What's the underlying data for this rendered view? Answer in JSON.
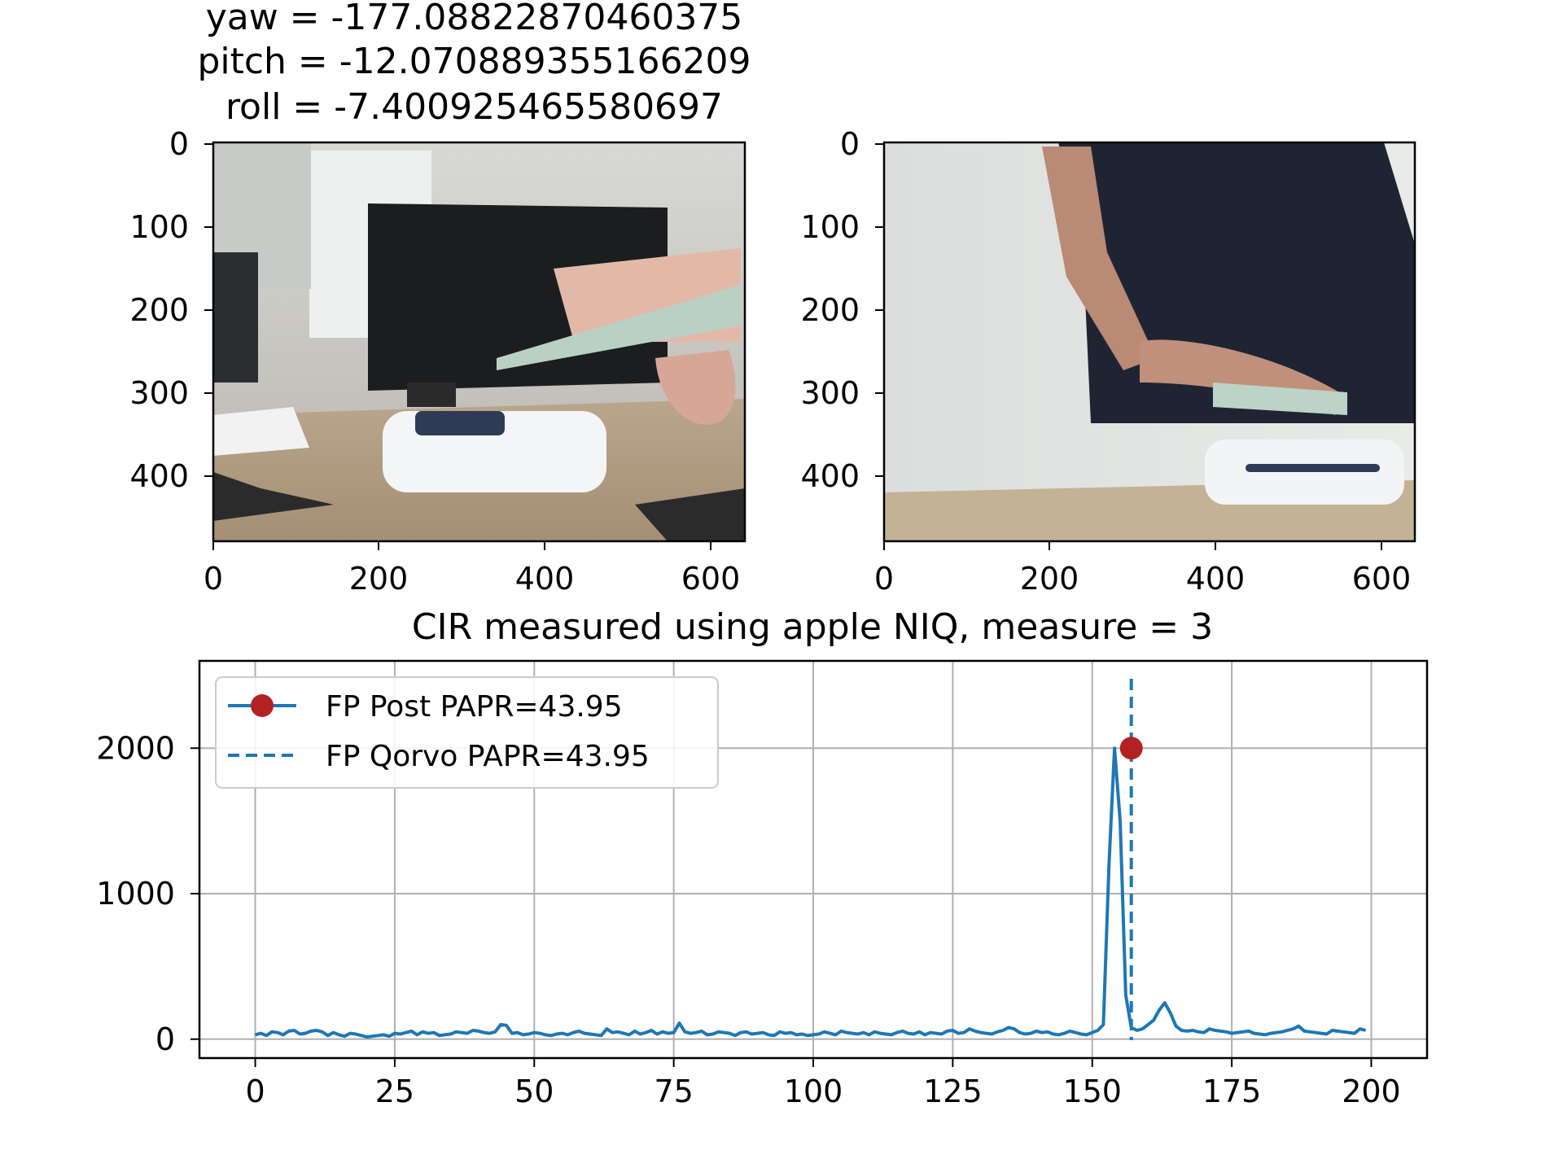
{
  "header": {
    "yaw": "yaw = -177.08822870460375",
    "pitch": "pitch = -12.070889355166209",
    "roll": "roll = -7.400925465580697"
  },
  "images": [
    {
      "name": "camera-view-left",
      "description_icon": "camera-photo",
      "x_ticks": [
        "0",
        "200",
        "400",
        "600"
      ],
      "y_ticks": [
        "0",
        "100",
        "200",
        "300",
        "400"
      ]
    },
    {
      "name": "camera-view-right",
      "description_icon": "camera-photo",
      "x_ticks": [
        "0",
        "200",
        "400",
        "600"
      ],
      "y_ticks": [
        "0",
        "100",
        "200",
        "300",
        "400"
      ]
    }
  ],
  "chart_data": {
    "type": "line",
    "title": "CIR measured using apple NIQ, measure = 3",
    "xlabel": "",
    "ylabel": "",
    "xlim": [
      -10,
      210
    ],
    "ylim": [
      -130,
      2600
    ],
    "x_ticks": [
      0,
      25,
      50,
      75,
      100,
      125,
      150,
      175,
      200
    ],
    "y_ticks": [
      0,
      1000,
      2000
    ],
    "grid": true,
    "legend_position": "top-left",
    "series": [
      {
        "name": "FP Post PAPR=43.95",
        "color": "#1f77b4",
        "marker_color": "#b22222",
        "marker": {
          "x": 157,
          "y": 2000
        },
        "values": [
          30,
          40,
          25,
          50,
          45,
          30,
          55,
          60,
          35,
          40,
          55,
          60,
          50,
          25,
          45,
          30,
          20,
          40,
          35,
          25,
          15,
          20,
          25,
          30,
          20,
          40,
          35,
          45,
          55,
          30,
          50,
          40,
          45,
          25,
          30,
          35,
          50,
          45,
          40,
          60,
          55,
          45,
          40,
          50,
          100,
          95,
          40,
          45,
          30,
          35,
          45,
          40,
          30,
          25,
          35,
          40,
          30,
          45,
          55,
          40,
          35,
          30,
          25,
          70,
          45,
          50,
          40,
          30,
          55,
          35,
          45,
          60,
          35,
          50,
          40,
          45,
          110,
          50,
          40,
          45,
          55,
          30,
          35,
          50,
          45,
          40,
          25,
          45,
          50,
          35,
          40,
          45,
          30,
          25,
          50,
          40,
          45,
          30,
          35,
          25,
          30,
          35,
          50,
          40,
          30,
          55,
          45,
          40,
          35,
          45,
          30,
          50,
          40,
          35,
          30,
          45,
          55,
          40,
          35,
          50,
          30,
          45,
          40,
          35,
          55,
          60,
          40,
          45,
          70,
          55,
          45,
          40,
          35,
          50,
          60,
          80,
          70,
          45,
          35,
          40,
          55,
          45,
          50,
          35,
          30,
          40,
          55,
          45,
          35,
          30,
          45,
          60,
          100,
          1200,
          2000,
          1500,
          300,
          80,
          60,
          70,
          100,
          130,
          200,
          250,
          180,
          90,
          60,
          55,
          60,
          50,
          45,
          70,
          60,
          55,
          50,
          40,
          45,
          50,
          55,
          40,
          35,
          30,
          40,
          45,
          50,
          60,
          70,
          90,
          55,
          50,
          45,
          40,
          35,
          60,
          55,
          50,
          45,
          40,
          70,
          60
        ]
      },
      {
        "name": "FP Qorvo PAPR=43.95",
        "color": "#1f77b4",
        "style": "dashed",
        "x": 157
      }
    ]
  }
}
